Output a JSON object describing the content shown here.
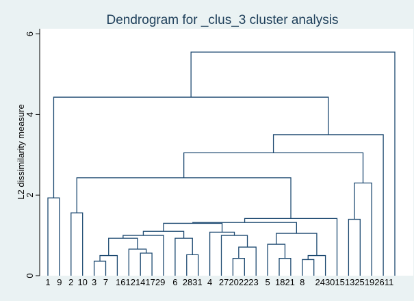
{
  "colors": {
    "background": "#eaf2f3",
    "plot_background": "#ffffff",
    "line": "#1a476f",
    "title": "#1e3f5a",
    "text": "#000000"
  },
  "chart_data": {
    "type": "dendrogram",
    "title": "Dendrogram for _clus_3 cluster analysis",
    "xlabel": "",
    "ylabel": "L2 dissimilarity measure",
    "ylim": [
      0,
      6
    ],
    "yticks": [
      0,
      2,
      4,
      6
    ],
    "grid": false,
    "legend": "none",
    "leaves": [
      "1",
      "9",
      "2",
      "10",
      "3",
      "7",
      "16",
      "12",
      "14",
      "17",
      "29",
      "6",
      "28",
      "31",
      "4",
      "27",
      "20",
      "22",
      "23",
      "5",
      "18",
      "21",
      "8",
      "24",
      "30",
      "15",
      "13",
      "25",
      "19",
      "26",
      "11"
    ],
    "leaf_label_groups": [
      "1",
      "9",
      "2",
      "10",
      "3",
      "7",
      "1612141729",
      "6",
      "2831",
      "4",
      "27202223",
      "5",
      "1821",
      "8",
      "2430151325192611"
    ],
    "merges": [
      {
        "id": "A",
        "children": [
          "1",
          "9"
        ],
        "height": 1.93
      },
      {
        "id": "B",
        "children": [
          "2",
          "10"
        ],
        "height": 1.56
      },
      {
        "id": "C",
        "children": [
          "3",
          "7"
        ],
        "height": 0.36
      },
      {
        "id": "D",
        "children": [
          "C",
          "16"
        ],
        "height": 0.5
      },
      {
        "id": "E",
        "children": [
          "14",
          "17"
        ],
        "height": 0.56
      },
      {
        "id": "F",
        "children": [
          "12",
          "E"
        ],
        "height": 0.66
      },
      {
        "id": "G",
        "children": [
          "D",
          "F"
        ],
        "height": 0.93
      },
      {
        "id": "H",
        "children": [
          "G",
          "29"
        ],
        "height": 1.0
      },
      {
        "id": "I",
        "children": [
          "28",
          "31"
        ],
        "height": 0.52
      },
      {
        "id": "J",
        "children": [
          "6",
          "I"
        ],
        "height": 0.93
      },
      {
        "id": "K",
        "children": [
          "H",
          "J"
        ],
        "height": 1.1
      },
      {
        "id": "L",
        "children": [
          "20",
          "22"
        ],
        "height": 0.43
      },
      {
        "id": "M",
        "children": [
          "L",
          "23"
        ],
        "height": 0.71
      },
      {
        "id": "N",
        "children": [
          "27",
          "M"
        ],
        "height": 1.0
      },
      {
        "id": "O",
        "children": [
          "4",
          "N"
        ],
        "height": 1.08
      },
      {
        "id": "P",
        "children": [
          "K",
          "O"
        ],
        "height": 1.3
      },
      {
        "id": "Q",
        "children": [
          "18",
          "21"
        ],
        "height": 0.43
      },
      {
        "id": "R",
        "children": [
          "5",
          "Q"
        ],
        "height": 0.78
      },
      {
        "id": "S",
        "children": [
          "8",
          "24"
        ],
        "height": 0.4
      },
      {
        "id": "T",
        "children": [
          "S",
          "30"
        ],
        "height": 0.5
      },
      {
        "id": "U",
        "children": [
          "R",
          "T"
        ],
        "height": 1.05
      },
      {
        "id": "V",
        "children": [
          "P",
          "U"
        ],
        "height": 1.32
      },
      {
        "id": "W",
        "children": [
          "V",
          "15"
        ],
        "height": 1.42
      },
      {
        "id": "X",
        "children": [
          "B",
          "W"
        ],
        "height": 2.43
      },
      {
        "id": "Y",
        "children": [
          "13",
          "25"
        ],
        "height": 1.4
      },
      {
        "id": "Z",
        "children": [
          "Y",
          "19"
        ],
        "height": 2.3
      },
      {
        "id": "AA",
        "children": [
          "X",
          "Z"
        ],
        "height": 3.05
      },
      {
        "id": "AB",
        "children": [
          "AA",
          "26"
        ],
        "height": 3.5
      },
      {
        "id": "AC",
        "children": [
          "A",
          "AB"
        ],
        "height": 4.43
      },
      {
        "id": "AD",
        "children": [
          "AC",
          "11"
        ],
        "height": 5.55
      }
    ]
  }
}
